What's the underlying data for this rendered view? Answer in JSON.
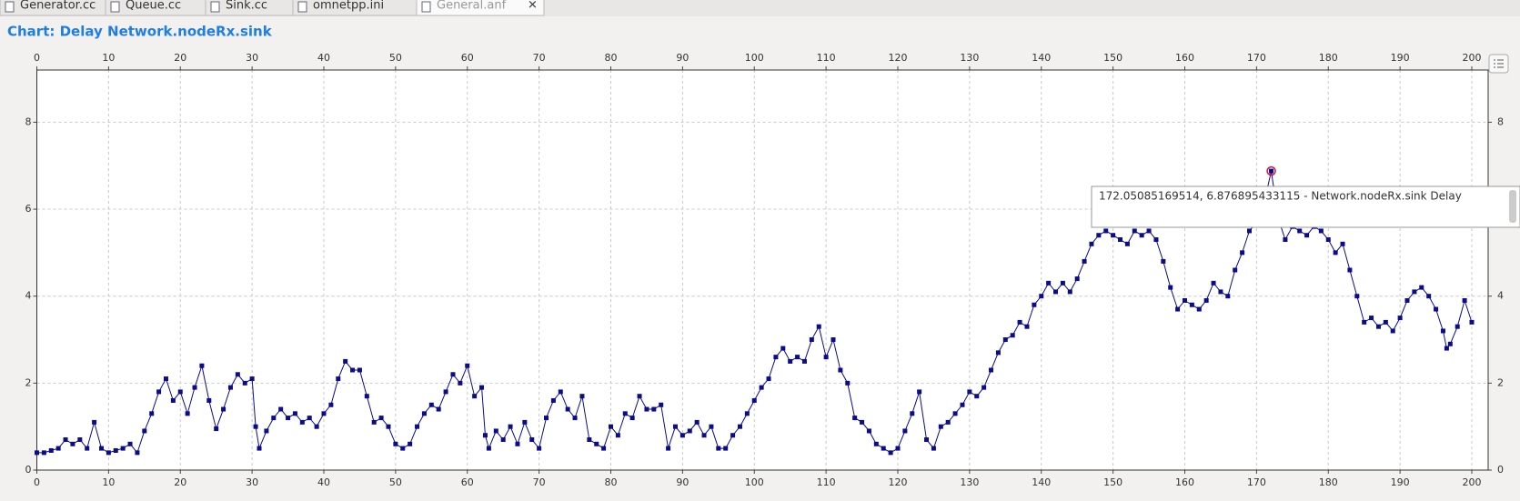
{
  "tabs": [
    "Generator.cc",
    "Queue.cc",
    "Sink.cc",
    "omnetpp.ini",
    "General.anf"
  ],
  "chart_data": {
    "type": "line",
    "title": "Chart: Delay Network.nodeRx.sink",
    "x": [
      0,
      1,
      2,
      3,
      4,
      5,
      6,
      7,
      8,
      9,
      10,
      11,
      12,
      13,
      14,
      15,
      16,
      17,
      18,
      19,
      20,
      21,
      22,
      23,
      24,
      25,
      26,
      27,
      28,
      29,
      30,
      30.5,
      31,
      32,
      33,
      34,
      35,
      36,
      37,
      38,
      39,
      40,
      41,
      42,
      43,
      44,
      45,
      46,
      47,
      48,
      49,
      50,
      51,
      52,
      53,
      54,
      55,
      56,
      57,
      58,
      59,
      60,
      61,
      62,
      62.5,
      63,
      64,
      65,
      66,
      67,
      68,
      69,
      70,
      71,
      72,
      73,
      74,
      75,
      76,
      77,
      78,
      79,
      80,
      81,
      82,
      83,
      84,
      85,
      86,
      87,
      88,
      89,
      90,
      91,
      92,
      93,
      94,
      95,
      96,
      97,
      98,
      99,
      100,
      101,
      102,
      103,
      104,
      105,
      106,
      107,
      108,
      109,
      110,
      111,
      112,
      113,
      114,
      115,
      116,
      117,
      118,
      119,
      120,
      121,
      122,
      123,
      124,
      125,
      126,
      127,
      128,
      129,
      130,
      131,
      132,
      133,
      134,
      135,
      136,
      137,
      138,
      139,
      140,
      141,
      142,
      143,
      144,
      145,
      146,
      147,
      148,
      149,
      150,
      151,
      152,
      153,
      154,
      155,
      156,
      157,
      158,
      159,
      160,
      161,
      162,
      163,
      164,
      165,
      166,
      167,
      168,
      169,
      170,
      171,
      172.05085169514,
      173,
      174,
      175,
      176,
      177,
      178,
      179,
      180,
      181,
      182,
      183,
      184,
      185,
      186,
      187,
      188,
      189,
      190,
      191,
      192,
      193,
      194,
      195,
      196,
      196.5,
      197,
      198,
      199,
      200
    ],
    "series": [
      {
        "color": "#0b0b8c",
        "values": [
          0.4,
          0.4,
          0.45,
          0.5,
          0.7,
          0.6,
          0.7,
          0.5,
          1.1,
          0.5,
          0.4,
          0.45,
          0.5,
          0.6,
          0.4,
          0.9,
          1.3,
          1.8,
          2.1,
          1.6,
          1.8,
          1.3,
          1.9,
          2.4,
          1.6,
          0.95,
          1.4,
          1.9,
          2.2,
          2.0,
          2.1,
          1.0,
          0.5,
          0.9,
          1.2,
          1.4,
          1.2,
          1.3,
          1.1,
          1.2,
          1.0,
          1.3,
          1.5,
          2.1,
          2.5,
          2.3,
          2.3,
          1.7,
          1.1,
          1.2,
          1.0,
          0.6,
          0.5,
          0.6,
          1.0,
          1.3,
          1.5,
          1.4,
          1.8,
          2.2,
          2.0,
          2.4,
          1.7,
          1.9,
          0.8,
          0.5,
          0.9,
          0.7,
          1.0,
          0.6,
          1.1,
          0.7,
          0.5,
          1.2,
          1.6,
          1.8,
          1.4,
          1.2,
          1.7,
          0.7,
          0.6,
          0.5,
          1.0,
          0.8,
          1.3,
          1.2,
          1.7,
          1.4,
          1.4,
          1.5,
          0.5,
          1.0,
          0.8,
          0.9,
          1.1,
          0.8,
          1.0,
          0.5,
          0.5,
          0.8,
          1.0,
          1.3,
          1.6,
          1.9,
          2.1,
          2.6,
          2.8,
          2.5,
          2.6,
          2.5,
          3.0,
          3.3,
          2.6,
          3.0,
          2.3,
          2.0,
          1.2,
          1.1,
          0.9,
          0.6,
          0.5,
          0.4,
          0.5,
          0.9,
          1.3,
          1.8,
          0.7,
          0.5,
          1.0,
          1.1,
          1.3,
          1.5,
          1.8,
          1.7,
          1.9,
          2.3,
          2.7,
          3.0,
          3.1,
          3.4,
          3.3,
          3.8,
          4.0,
          4.3,
          4.1,
          4.3,
          4.1,
          4.4,
          4.8,
          5.2,
          5.4,
          5.5,
          5.4,
          5.3,
          5.2,
          5.5,
          5.4,
          5.5,
          5.3,
          4.8,
          4.2,
          3.7,
          3.9,
          3.8,
          3.7,
          3.9,
          4.3,
          4.1,
          4.0,
          4.6,
          5.0,
          5.5,
          5.7,
          6.1,
          6.876895433115,
          5.8,
          5.3,
          5.6,
          5.5,
          5.4,
          5.6,
          5.5,
          5.3,
          5.0,
          5.2,
          4.6,
          4.0,
          3.4,
          3.5,
          3.3,
          3.4,
          3.2,
          3.5,
          3.9,
          4.1,
          4.2,
          4.0,
          3.7,
          3.2,
          2.8,
          2.9,
          3.3,
          3.9,
          3.4
        ]
      }
    ],
    "xlim": [
      0,
      200
    ],
    "xticks": [
      0,
      10,
      20,
      30,
      40,
      50,
      60,
      70,
      80,
      90,
      100,
      110,
      120,
      130,
      140,
      150,
      160,
      170,
      180,
      190,
      200
    ],
    "ylim": [
      0,
      9.2
    ],
    "yticks": [
      0,
      2,
      4,
      6,
      8
    ],
    "grid": true,
    "tooltip": "172.05085169514, 6.876895433115 - Network.nodeRx.sink Delay"
  }
}
